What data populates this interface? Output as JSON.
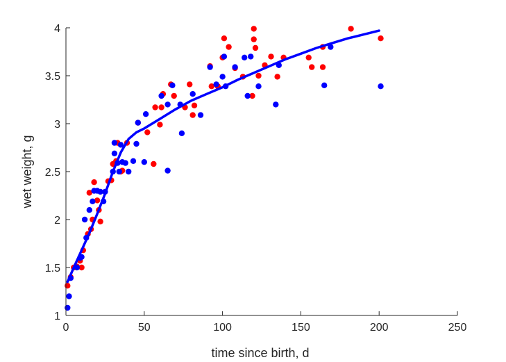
{
  "chart_data": {
    "type": "scatter",
    "title": "",
    "xlabel": "time since birth, d",
    "ylabel": "wet weight, g",
    "xlim": [
      0,
      250
    ],
    "ylim": [
      1,
      4
    ],
    "xticks": [
      "0",
      "50",
      "100",
      "150",
      "200",
      "250"
    ],
    "yticks": [
      "1",
      "1.5",
      "2",
      "2.5",
      "3",
      "3.5",
      "4"
    ],
    "grid": false,
    "legend": "none",
    "series": [
      {
        "kind": "scatter",
        "color": "#ff0000",
        "points": [
          [
            1,
            1.31
          ],
          [
            3,
            1.4
          ],
          [
            5,
            1.5
          ],
          [
            7,
            1.51
          ],
          [
            9,
            1.57
          ],
          [
            10,
            1.5
          ],
          [
            11,
            1.68
          ],
          [
            14,
            1.85
          ],
          [
            15,
            2.28
          ],
          [
            16,
            1.9
          ],
          [
            17,
            2.0
          ],
          [
            18,
            2.39
          ],
          [
            20,
            2.2
          ],
          [
            21,
            2.1
          ],
          [
            22,
            1.98
          ],
          [
            27,
            2.4
          ],
          [
            29,
            2.41
          ],
          [
            30,
            2.58
          ],
          [
            32,
            2.61
          ],
          [
            33,
            2.8
          ],
          [
            35,
            2.5
          ],
          [
            36,
            2.51
          ],
          [
            39,
            2.8
          ],
          [
            46,
            3.01
          ],
          [
            52,
            2.91
          ],
          [
            56,
            2.58
          ],
          [
            57,
            3.17
          ],
          [
            60,
            2.99
          ],
          [
            61,
            3.17
          ],
          [
            62,
            3.31
          ],
          [
            67,
            3.41
          ],
          [
            69,
            3.29
          ],
          [
            76,
            3.17
          ],
          [
            79,
            3.41
          ],
          [
            81,
            3.09
          ],
          [
            82,
            3.19
          ],
          [
            92,
            3.6
          ],
          [
            93,
            3.39
          ],
          [
            97,
            3.39
          ],
          [
            100,
            3.69
          ],
          [
            101,
            3.89
          ],
          [
            104,
            3.8
          ],
          [
            108,
            3.58
          ],
          [
            113,
            3.49
          ],
          [
            119,
            3.29
          ],
          [
            120,
            3.88
          ],
          [
            120,
            3.99
          ],
          [
            121,
            3.79
          ],
          [
            123,
            3.5
          ],
          [
            127,
            3.61
          ],
          [
            131,
            3.7
          ],
          [
            135,
            3.49
          ],
          [
            139,
            3.69
          ],
          [
            155,
            3.69
          ],
          [
            157,
            3.59
          ],
          [
            164,
            3.8
          ],
          [
            164,
            3.59
          ],
          [
            182,
            3.99
          ],
          [
            201,
            3.89
          ]
        ]
      },
      {
        "kind": "scatter",
        "color": "#0000ff",
        "points": [
          [
            1,
            1.08
          ],
          [
            2,
            1.2
          ],
          [
            3,
            1.39
          ],
          [
            7,
            1.5
          ],
          [
            9,
            1.6
          ],
          [
            10,
            1.61
          ],
          [
            12,
            2.0
          ],
          [
            13,
            1.81
          ],
          [
            15,
            2.1
          ],
          [
            17,
            2.19
          ],
          [
            18,
            2.3
          ],
          [
            20,
            2.3
          ],
          [
            22,
            2.29
          ],
          [
            24,
            2.19
          ],
          [
            25,
            2.29
          ],
          [
            30,
            2.5
          ],
          [
            31,
            2.8
          ],
          [
            31,
            2.69
          ],
          [
            33,
            2.59
          ],
          [
            34,
            2.5
          ],
          [
            35,
            2.78
          ],
          [
            36,
            2.6
          ],
          [
            38,
            2.59
          ],
          [
            40,
            2.5
          ],
          [
            43,
            2.61
          ],
          [
            45,
            2.79
          ],
          [
            46,
            3.01
          ],
          [
            50,
            2.6
          ],
          [
            51,
            3.1
          ],
          [
            61,
            3.29
          ],
          [
            65,
            2.51
          ],
          [
            65,
            3.2
          ],
          [
            68,
            3.4
          ],
          [
            73,
            3.2
          ],
          [
            74,
            2.9
          ],
          [
            81,
            3.31
          ],
          [
            86,
            3.09
          ],
          [
            92,
            3.59
          ],
          [
            96,
            3.41
          ],
          [
            100,
            3.49
          ],
          [
            101,
            3.7
          ],
          [
            102,
            3.39
          ],
          [
            108,
            3.59
          ],
          [
            114,
            3.69
          ],
          [
            116,
            3.29
          ],
          [
            118,
            3.7
          ],
          [
            123,
            3.39
          ],
          [
            134,
            3.2
          ],
          [
            136,
            3.61
          ],
          [
            165,
            3.4
          ],
          [
            169,
            3.8
          ],
          [
            201,
            3.39
          ]
        ]
      },
      {
        "kind": "line",
        "color": "#0000ff",
        "points": [
          [
            1,
            1.35
          ],
          [
            5,
            1.5
          ],
          [
            10,
            1.68
          ],
          [
            15,
            1.86
          ],
          [
            20,
            2.06
          ],
          [
            25,
            2.27
          ],
          [
            30,
            2.5
          ],
          [
            35,
            2.7
          ],
          [
            40,
            2.84
          ],
          [
            45,
            2.91
          ],
          [
            50,
            2.95
          ],
          [
            60,
            3.05
          ],
          [
            70,
            3.15
          ],
          [
            80,
            3.24
          ],
          [
            90,
            3.31
          ],
          [
            100,
            3.38
          ],
          [
            110,
            3.46
          ],
          [
            120,
            3.53
          ],
          [
            130,
            3.6
          ],
          [
            140,
            3.67
          ],
          [
            150,
            3.73
          ],
          [
            160,
            3.79
          ],
          [
            170,
            3.84
          ],
          [
            180,
            3.89
          ],
          [
            190,
            3.93
          ],
          [
            200,
            3.97
          ]
        ]
      }
    ]
  }
}
